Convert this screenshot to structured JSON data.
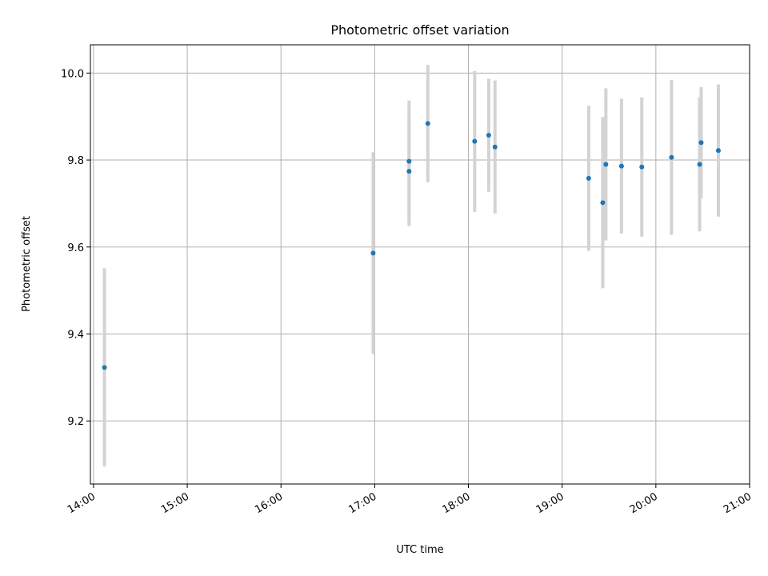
{
  "chart_data": {
    "type": "scatter",
    "title": "Photometric offset variation",
    "xlabel": "UTC time",
    "ylabel": "Photometric offset",
    "x_ticks": [
      "14:00",
      "15:00",
      "16:00",
      "17:00",
      "18:00",
      "19:00",
      "20:00",
      "21:00"
    ],
    "y_ticks": [
      "9.2",
      "9.4",
      "9.6",
      "9.8",
      "10.0"
    ],
    "xlim": [
      "13:58",
      "21:00"
    ],
    "ylim": [
      9.055,
      10.065
    ],
    "grid": true,
    "series": [
      {
        "marker_color": "#1f77b4",
        "errorbar_color": "#d3d3d3",
        "points": [
          {
            "x": "14:07",
            "y": 9.323,
            "err": 0.228
          },
          {
            "x": "16:59",
            "y": 9.586,
            "err": 0.232
          },
          {
            "x": "17:22",
            "y": 9.797,
            "err": 0.14
          },
          {
            "x": "17:22",
            "y": 9.774,
            "err": 0.126
          },
          {
            "x": "17:34",
            "y": 9.884,
            "err": 0.135
          },
          {
            "x": "18:04",
            "y": 9.843,
            "err": 0.162
          },
          {
            "x": "18:13",
            "y": 9.857,
            "err": 0.13
          },
          {
            "x": "18:17",
            "y": 9.83,
            "err": 0.153
          },
          {
            "x": "19:17",
            "y": 9.758,
            "err": 0.167
          },
          {
            "x": "19:26",
            "y": 9.702,
            "err": 0.197
          },
          {
            "x": "19:28",
            "y": 9.79,
            "err": 0.175
          },
          {
            "x": "19:38",
            "y": 9.786,
            "err": 0.155
          },
          {
            "x": "19:51",
            "y": 9.784,
            "err": 0.16
          },
          {
            "x": "20:10",
            "y": 9.806,
            "err": 0.178
          },
          {
            "x": "20:28",
            "y": 9.79,
            "err": 0.154
          },
          {
            "x": "20:29",
            "y": 9.84,
            "err": 0.128
          },
          {
            "x": "20:40",
            "y": 9.822,
            "err": 0.152
          }
        ]
      }
    ]
  }
}
